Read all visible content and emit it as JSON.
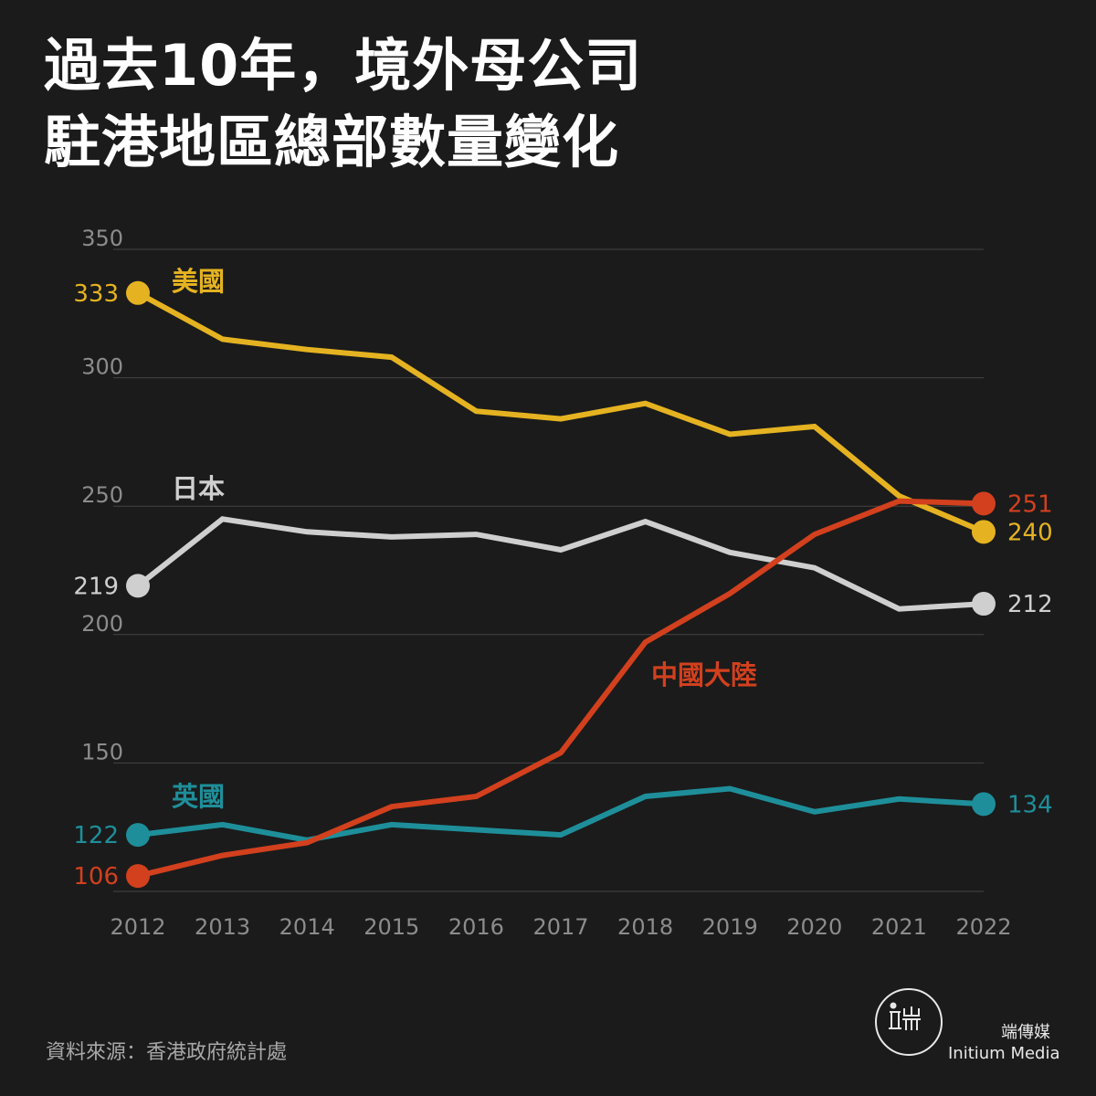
{
  "title_lines": [
    "過去10年，境外母公司",
    "駐港地區總部數量變化"
  ],
  "source": "資料來源：香港政府統計處",
  "brand": {
    "name_cn": "端傳媒",
    "name_en": "Initium Media",
    "logo_glyph": "端"
  },
  "colors": {
    "background": "#1b1b1b",
    "usa": "#e5b321",
    "japan": "#cfcfcf",
    "china": "#d2401e",
    "uk": "#1e8f9a",
    "grid": "#444444",
    "tick": "#8c8c8c"
  },
  "chart_data": {
    "type": "line",
    "x": [
      "2012",
      "2013",
      "2014",
      "2015",
      "2016",
      "2017",
      "2018",
      "2019",
      "2020",
      "2021",
      "2022"
    ],
    "yticks": [
      350,
      300,
      250,
      200,
      150
    ],
    "ylim": [
      100,
      350
    ],
    "grid": true,
    "series": [
      {
        "name": "美國",
        "key": "usa",
        "values": [
          333,
          315,
          311,
          308,
          287,
          284,
          290,
          278,
          281,
          254,
          240
        ],
        "start_label": "333",
        "end_label": "240"
      },
      {
        "name": "日本",
        "key": "japan",
        "values": [
          219,
          245,
          240,
          238,
          239,
          233,
          244,
          232,
          226,
          210,
          212
        ],
        "start_label": "219",
        "end_label": "212"
      },
      {
        "name": "中國大陸",
        "key": "china",
        "values": [
          106,
          114,
          119,
          133,
          137,
          154,
          197,
          216,
          239,
          252,
          251
        ],
        "start_label": "106",
        "end_label": "251"
      },
      {
        "name": "英國",
        "key": "uk",
        "values": [
          122,
          126,
          120,
          126,
          124,
          122,
          137,
          140,
          131,
          136,
          134
        ],
        "start_label": "122",
        "end_label": "134"
      }
    ]
  }
}
